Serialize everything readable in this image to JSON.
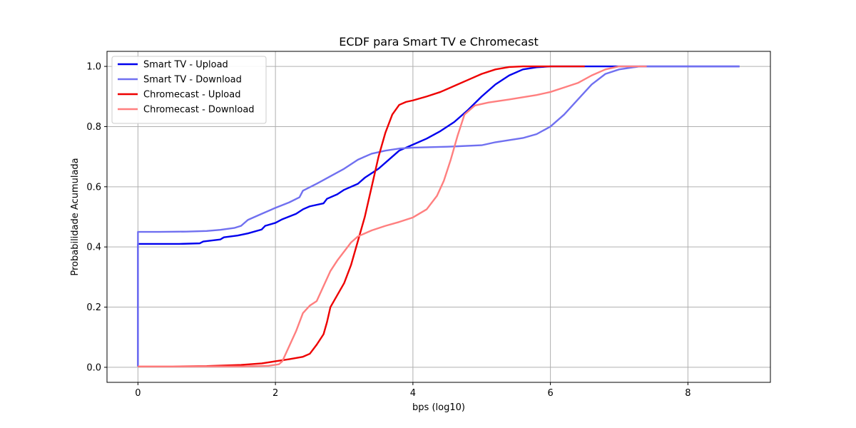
{
  "chart_data": {
    "type": "line",
    "title": "ECDF para Smart TV e Chromecast",
    "xlabel": "bps (log10)",
    "ylabel": "Probabilidade Acumulada",
    "xlim": [
      -0.45,
      9.2
    ],
    "ylim": [
      -0.05,
      1.05
    ],
    "xticks": [
      0,
      2,
      4,
      6,
      8
    ],
    "xtick_labels": [
      "0",
      "2",
      "4",
      "6",
      "8"
    ],
    "yticks": [
      0.0,
      0.2,
      0.4,
      0.6,
      0.8,
      1.0
    ],
    "ytick_labels": [
      "0.0",
      "0.2",
      "0.4",
      "0.6",
      "0.8",
      "1.0"
    ],
    "grid": true,
    "legend_position": "top-left",
    "series": [
      {
        "name": "Smart TV - Upload",
        "color": "#0000ee",
        "opacity": 1.0,
        "points": [
          [
            0,
            0.003
          ],
          [
            0,
            0.41
          ],
          [
            0.3,
            0.41
          ],
          [
            0.6,
            0.41
          ],
          [
            0.9,
            0.412
          ],
          [
            0.95,
            0.418
          ],
          [
            1.2,
            0.425
          ],
          [
            1.25,
            0.432
          ],
          [
            1.45,
            0.438
          ],
          [
            1.6,
            0.445
          ],
          [
            1.8,
            0.458
          ],
          [
            1.85,
            0.47
          ],
          [
            2.0,
            0.48
          ],
          [
            2.1,
            0.492
          ],
          [
            2.3,
            0.51
          ],
          [
            2.4,
            0.525
          ],
          [
            2.5,
            0.535
          ],
          [
            2.7,
            0.545
          ],
          [
            2.75,
            0.56
          ],
          [
            2.9,
            0.575
          ],
          [
            3.0,
            0.59
          ],
          [
            3.2,
            0.61
          ],
          [
            3.3,
            0.63
          ],
          [
            3.5,
            0.66
          ],
          [
            3.6,
            0.68
          ],
          [
            3.8,
            0.72
          ],
          [
            4.0,
            0.74
          ],
          [
            4.2,
            0.76
          ],
          [
            4.4,
            0.785
          ],
          [
            4.6,
            0.815
          ],
          [
            4.8,
            0.855
          ],
          [
            5.0,
            0.9
          ],
          [
            5.2,
            0.94
          ],
          [
            5.4,
            0.97
          ],
          [
            5.6,
            0.99
          ],
          [
            5.8,
            0.997
          ],
          [
            6.0,
            1.0
          ],
          [
            7.0,
            1.0
          ],
          [
            8.0,
            1.0
          ],
          [
            8.75,
            1.0
          ]
        ]
      },
      {
        "name": "Smart TV - Download",
        "color": "#7070f0",
        "opacity": 1.0,
        "points": [
          [
            0,
            0.003
          ],
          [
            0,
            0.45
          ],
          [
            0.3,
            0.45
          ],
          [
            0.7,
            0.451
          ],
          [
            1.0,
            0.453
          ],
          [
            1.2,
            0.457
          ],
          [
            1.4,
            0.463
          ],
          [
            1.5,
            0.47
          ],
          [
            1.6,
            0.49
          ],
          [
            1.8,
            0.51
          ],
          [
            2.0,
            0.53
          ],
          [
            2.2,
            0.548
          ],
          [
            2.35,
            0.565
          ],
          [
            2.4,
            0.587
          ],
          [
            2.6,
            0.61
          ],
          [
            2.8,
            0.635
          ],
          [
            3.0,
            0.66
          ],
          [
            3.2,
            0.69
          ],
          [
            3.4,
            0.71
          ],
          [
            3.6,
            0.72
          ],
          [
            3.8,
            0.727
          ],
          [
            4.0,
            0.73
          ],
          [
            4.5,
            0.733
          ],
          [
            5.0,
            0.738
          ],
          [
            5.2,
            0.748
          ],
          [
            5.4,
            0.755
          ],
          [
            5.6,
            0.762
          ],
          [
            5.8,
            0.775
          ],
          [
            6.0,
            0.8
          ],
          [
            6.2,
            0.84
          ],
          [
            6.4,
            0.89
          ],
          [
            6.6,
            0.94
          ],
          [
            6.8,
            0.975
          ],
          [
            7.0,
            0.99
          ],
          [
            7.3,
            1.0
          ],
          [
            8.0,
            1.0
          ],
          [
            8.75,
            1.0
          ]
        ]
      },
      {
        "name": "Chromecast - Upload",
        "color": "#ee0000",
        "opacity": 1.0,
        "points": [
          [
            0,
            0.003
          ],
          [
            0.5,
            0.003
          ],
          [
            1.0,
            0.004
          ],
          [
            1.5,
            0.008
          ],
          [
            1.8,
            0.013
          ],
          [
            2.0,
            0.02
          ],
          [
            2.2,
            0.027
          ],
          [
            2.4,
            0.035
          ],
          [
            2.5,
            0.045
          ],
          [
            2.6,
            0.075
          ],
          [
            2.7,
            0.11
          ],
          [
            2.75,
            0.15
          ],
          [
            2.8,
            0.2
          ],
          [
            2.9,
            0.24
          ],
          [
            3.0,
            0.28
          ],
          [
            3.1,
            0.34
          ],
          [
            3.2,
            0.42
          ],
          [
            3.3,
            0.5
          ],
          [
            3.4,
            0.6
          ],
          [
            3.5,
            0.7
          ],
          [
            3.6,
            0.78
          ],
          [
            3.7,
            0.84
          ],
          [
            3.8,
            0.872
          ],
          [
            3.9,
            0.882
          ],
          [
            4.0,
            0.887
          ],
          [
            4.2,
            0.9
          ],
          [
            4.4,
            0.915
          ],
          [
            4.6,
            0.935
          ],
          [
            4.8,
            0.955
          ],
          [
            5.0,
            0.975
          ],
          [
            5.2,
            0.99
          ],
          [
            5.4,
            0.998
          ],
          [
            5.6,
            1.0
          ],
          [
            6.0,
            1.0
          ],
          [
            6.5,
            1.0
          ]
        ]
      },
      {
        "name": "Chromecast - Download",
        "color": "#ff7f7f",
        "opacity": 1.0,
        "points": [
          [
            0,
            0.003
          ],
          [
            0.5,
            0.003
          ],
          [
            1.0,
            0.003
          ],
          [
            1.5,
            0.003
          ],
          [
            1.9,
            0.005
          ],
          [
            2.05,
            0.01
          ],
          [
            2.1,
            0.02
          ],
          [
            2.2,
            0.07
          ],
          [
            2.3,
            0.12
          ],
          [
            2.4,
            0.18
          ],
          [
            2.5,
            0.205
          ],
          [
            2.6,
            0.22
          ],
          [
            2.7,
            0.27
          ],
          [
            2.8,
            0.32
          ],
          [
            2.9,
            0.355
          ],
          [
            3.0,
            0.385
          ],
          [
            3.1,
            0.415
          ],
          [
            3.2,
            0.435
          ],
          [
            3.4,
            0.455
          ],
          [
            3.6,
            0.47
          ],
          [
            3.8,
            0.483
          ],
          [
            4.0,
            0.498
          ],
          [
            4.2,
            0.525
          ],
          [
            4.35,
            0.57
          ],
          [
            4.45,
            0.62
          ],
          [
            4.55,
            0.69
          ],
          [
            4.65,
            0.77
          ],
          [
            4.75,
            0.84
          ],
          [
            4.9,
            0.87
          ],
          [
            5.1,
            0.88
          ],
          [
            5.4,
            0.89
          ],
          [
            5.8,
            0.905
          ],
          [
            6.0,
            0.915
          ],
          [
            6.2,
            0.93
          ],
          [
            6.4,
            0.945
          ],
          [
            6.6,
            0.97
          ],
          [
            6.8,
            0.99
          ],
          [
            7.0,
            1.0
          ],
          [
            7.4,
            1.0
          ]
        ]
      }
    ]
  }
}
